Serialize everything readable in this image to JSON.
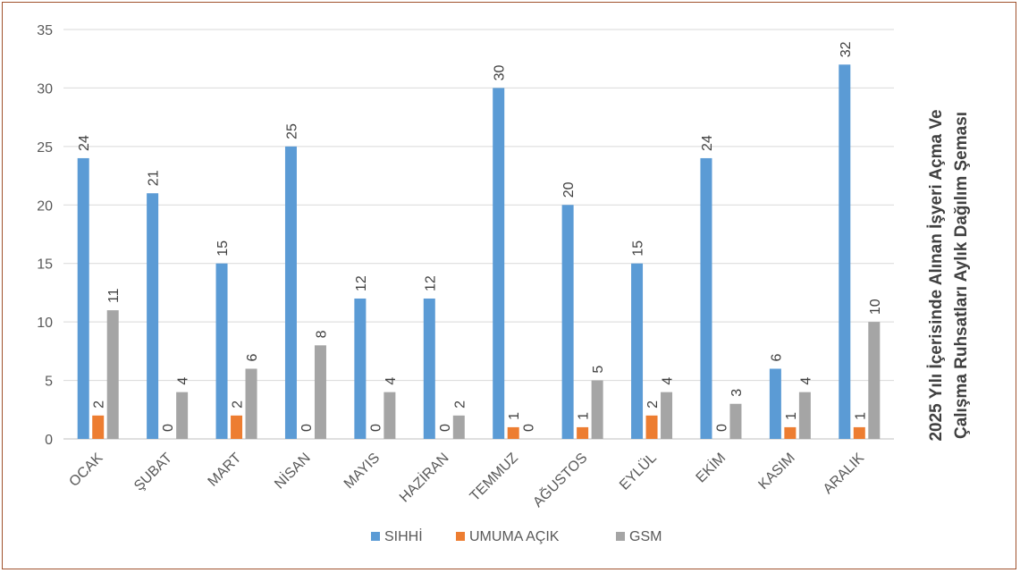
{
  "chart_data": {
    "type": "bar",
    "title": "2025 Yılı İçerisinde Alınan İşyeri Açma Ve Çalışma Ruhsatları Aylık Dağılım Şeması",
    "title_lines": [
      "2025 Yılı İçerisinde Alınan İşyeri Açma Ve",
      "Çalışma Ruhsatları Aylık Dağılım Şeması"
    ],
    "xlabel": "",
    "ylabel": "",
    "ylim": [
      0,
      35
    ],
    "yticks": [
      0,
      5,
      10,
      15,
      20,
      25,
      30,
      35
    ],
    "grid": true,
    "legend_position": "bottom",
    "categories": [
      "OCAK",
      "ŞUBAT",
      "MART",
      "NİSAN",
      "MAYIS",
      "HAZİRAN",
      "TEMMUZ",
      "AĞUSTOS",
      "EYLÜL",
      "EKİM",
      "KASIM",
      "ARALIK"
    ],
    "series": [
      {
        "name": "SIHHİ",
        "color": "#5b9bd5",
        "values": [
          24,
          21,
          15,
          25,
          12,
          12,
          30,
          20,
          15,
          24,
          6,
          32
        ]
      },
      {
        "name": "UMUMA AÇIK",
        "color": "#ed7d31",
        "values": [
          2,
          0,
          2,
          0,
          0,
          0,
          1,
          1,
          2,
          0,
          1,
          1
        ]
      },
      {
        "name": "GSM",
        "color": "#a5a5a5",
        "values": [
          11,
          4,
          6,
          8,
          4,
          2,
          0,
          5,
          4,
          3,
          4,
          10
        ]
      }
    ]
  }
}
